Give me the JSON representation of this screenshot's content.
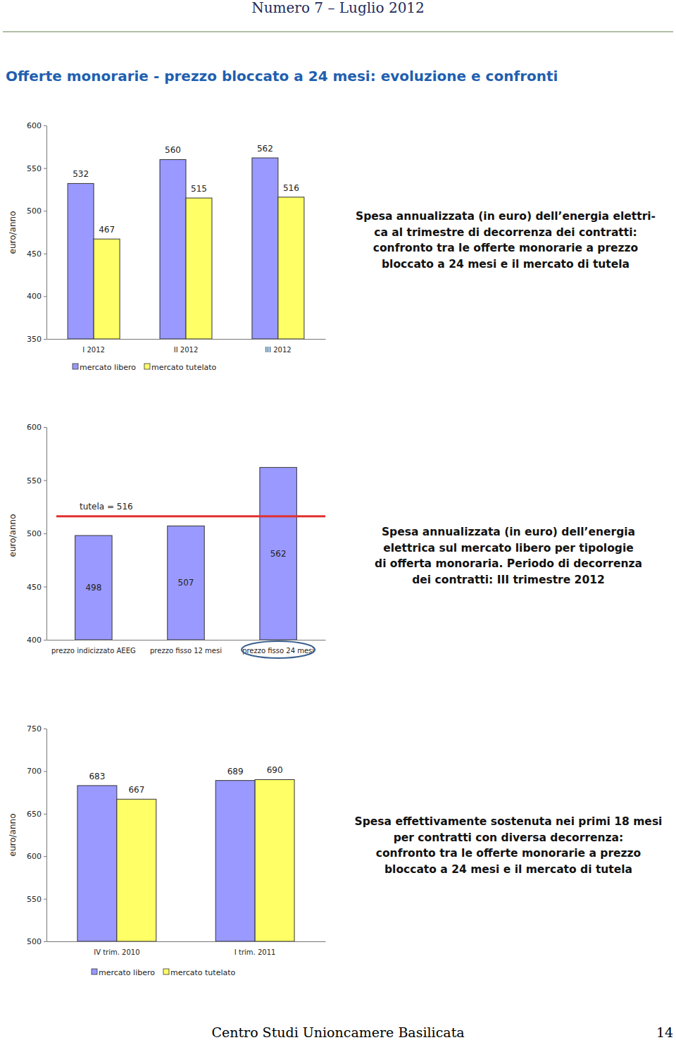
{
  "page": {
    "header": "Numero 7 – Luglio 2012",
    "title": "Offerte monorarie - prezzo bloccato a 24 mesi: evoluzione e confronti",
    "footer": "Centro Studi Unioncamere Basilicata",
    "page_number": 14
  },
  "chart_data": [
    {
      "type": "bar",
      "y_label": "euro/anno",
      "annotations": [
        "Spesa annualizzata (in euro) dell’energia elettri-",
        "ca al trimestre di decorrenza dei contratti:",
        "confronto tra le offerte monorarie a prezzo",
        "bloccato a 24 mesi e il mercato di tutela"
      ],
      "categories": [
        "I 2012",
        "II 2012",
        "III 2012"
      ],
      "series": [
        {
          "name": "mercato libero",
          "color": "#9999ff",
          "values": [
            532,
            560,
            562
          ]
        },
        {
          "name": "mercato tutelato",
          "color": "#ffff66",
          "values": [
            467,
            515,
            516
          ]
        }
      ],
      "ylim": [
        350,
        600
      ],
      "yticks": [
        350,
        400,
        450,
        500,
        550,
        600
      ],
      "data_labels": true,
      "legend": "bottom"
    },
    {
      "type": "bar",
      "y_label": "euro/anno",
      "annotations": [
        "Spesa annualizzata (in euro) dell’energia",
        "elettrica sul mercato libero per tipologie",
        "di offerta monoraria. Periodo di decorrenza",
        "dei contratti: III trimestre 2012"
      ],
      "categories": [
        "prezzo indicizzato AEEG",
        "prezzo fisso 12 mesi",
        "prezzo fisso 24 mesi"
      ],
      "values": [
        498,
        507,
        562
      ],
      "color": "#9999ff",
      "reference_line": {
        "value": 516,
        "label": "tutela = 516",
        "color": "#e03030"
      },
      "ylim": [
        400,
        600
      ],
      "yticks": [
        400,
        450,
        500,
        550,
        600
      ],
      "data_labels": true
    },
    {
      "type": "bar",
      "y_label": "euro/anno",
      "annotations": [
        "Spesa effettivamente sostenuta nei primi 18 mesi",
        "per contratti con diversa decorrenza:",
        "confronto tra le offerte monorarie a prezzo",
        "bloccato a 24 mesi e il mercato di tutela"
      ],
      "categories": [
        "IV trim. 2010",
        "I trim. 2011"
      ],
      "series": [
        {
          "name": "mercato libero",
          "color": "#9999ff",
          "values": [
            683,
            689
          ]
        },
        {
          "name": "mercato tutelato",
          "color": "#ffff66",
          "values": [
            667,
            690
          ]
        }
      ],
      "ylim": [
        500,
        750
      ],
      "yticks": [
        500,
        550,
        600,
        650,
        700,
        750
      ],
      "data_labels": true,
      "legend": "bottom"
    }
  ]
}
